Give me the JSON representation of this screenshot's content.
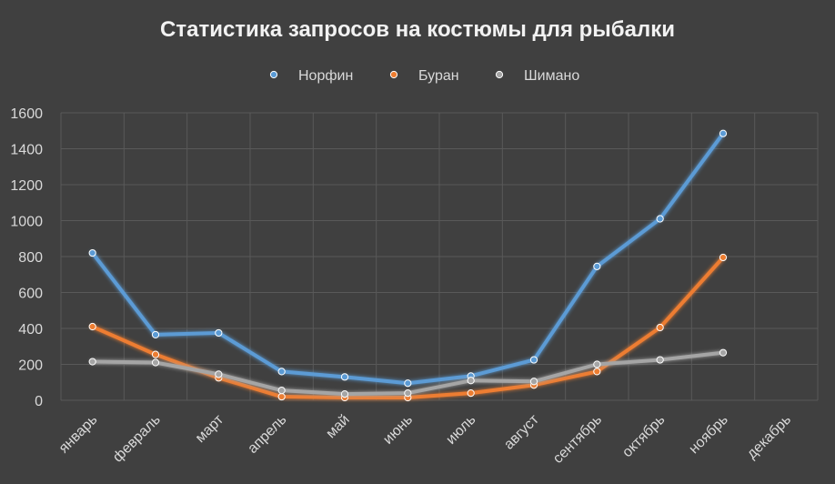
{
  "chart_data": {
    "type": "line",
    "title": "Статистика запросов на костюмы для рыбалки",
    "xlabel": "",
    "ylabel": "",
    "ylim": [
      0,
      1600
    ],
    "yticks": [
      0,
      200,
      400,
      600,
      800,
      1000,
      1200,
      1400,
      1600
    ],
    "grid": true,
    "legend_position": "top",
    "categories": [
      "январь",
      "февраль",
      "март",
      "апрель",
      "май",
      "июнь",
      "июль",
      "август",
      "сентябрь",
      "октябрь",
      "ноябрь",
      "декабрь"
    ],
    "series": [
      {
        "name": "Норфин",
        "color": "#5B9BD5",
        "values": [
          820,
          365,
          375,
          160,
          130,
          95,
          135,
          225,
          745,
          1010,
          1485,
          null
        ]
      },
      {
        "name": "Буран",
        "color": "#ED7D31",
        "values": [
          410,
          255,
          125,
          20,
          15,
          15,
          40,
          85,
          160,
          405,
          795,
          null
        ]
      },
      {
        "name": "Шимано",
        "color": "#A5A5A5",
        "values": [
          215,
          210,
          145,
          55,
          35,
          40,
          110,
          105,
          200,
          225,
          265,
          null
        ]
      }
    ]
  }
}
